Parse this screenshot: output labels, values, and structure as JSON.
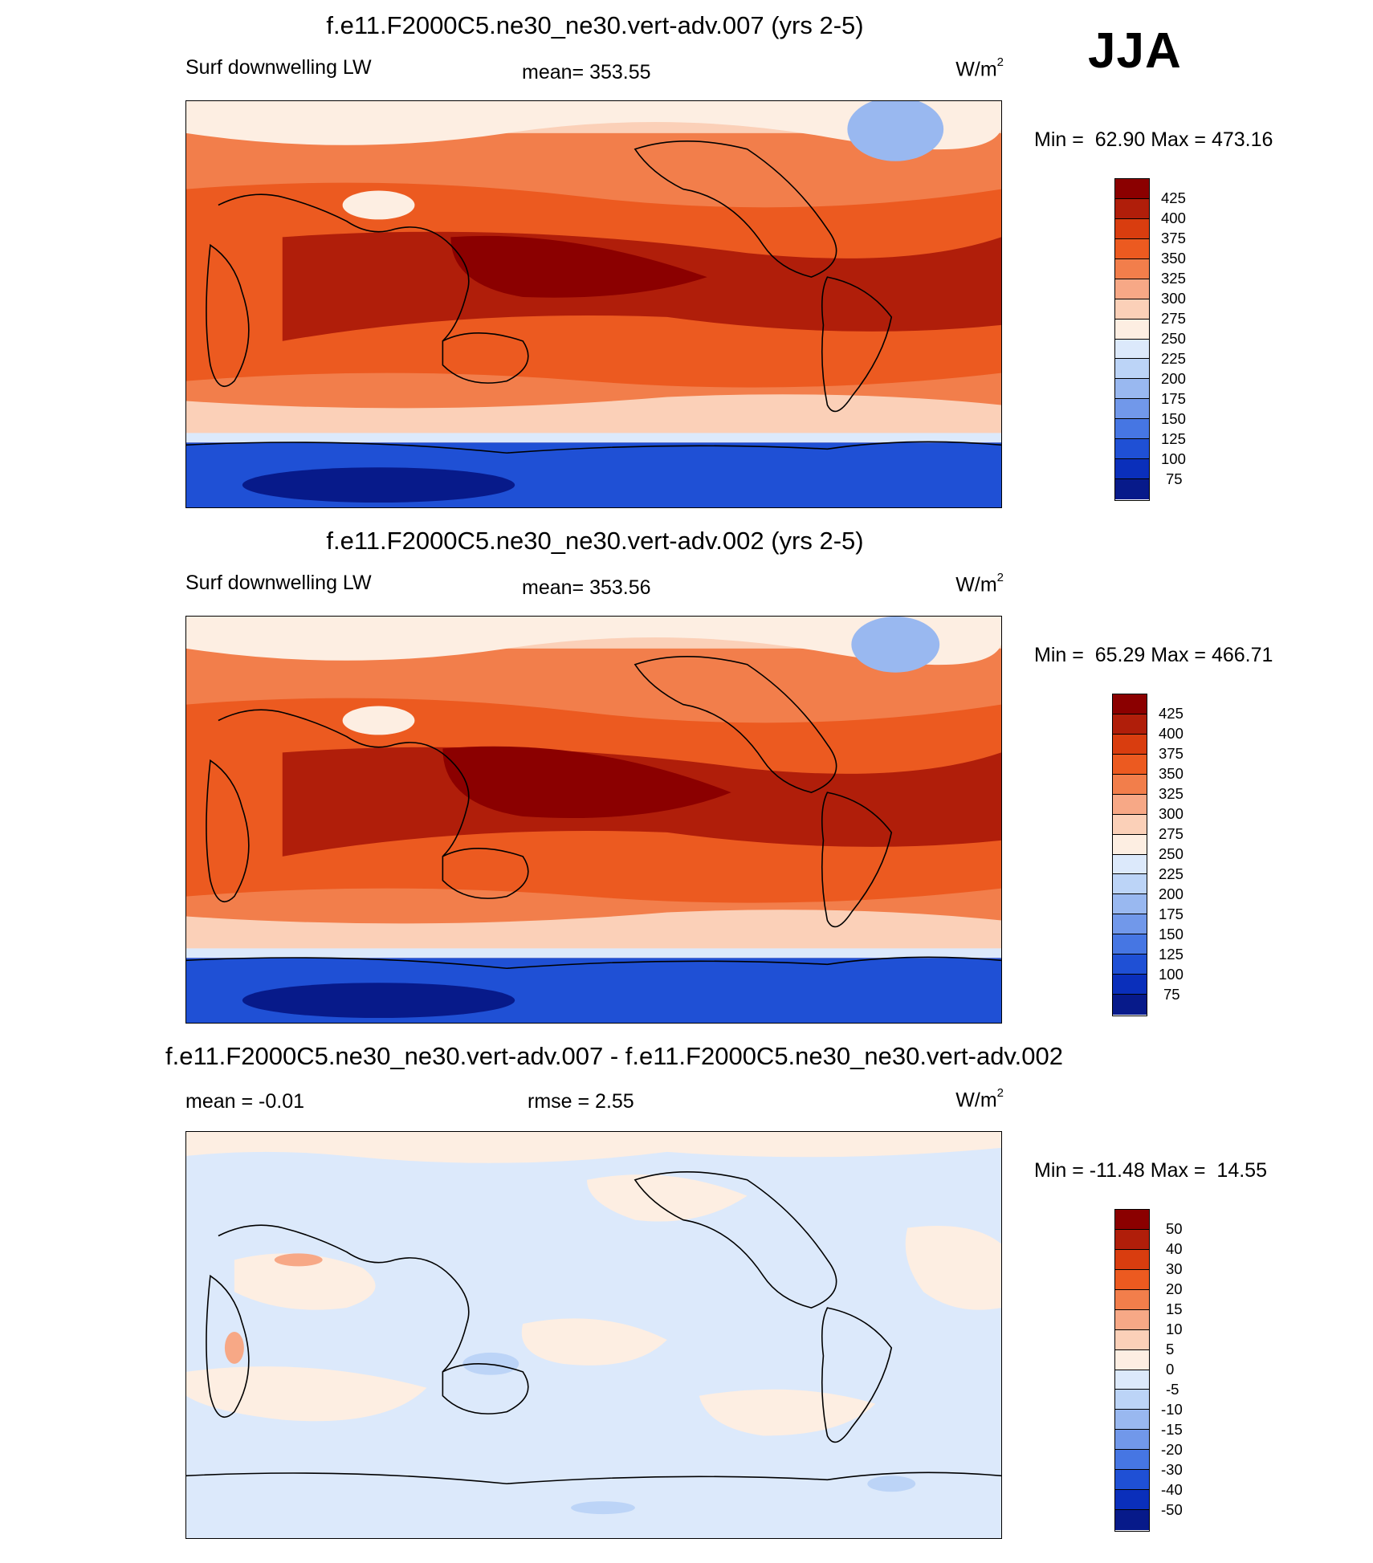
{
  "season_label": "JJA",
  "panels": [
    {
      "title": "f.e11.F2000C5.ne30_ne30.vert-adv.007 (yrs 2-5)",
      "left_label": "Surf downwelling LW",
      "center_label": "mean= 353.55",
      "units_base": "W/m",
      "units_exp": "2",
      "minmax": "Min =  62.90 Max = 473.16"
    },
    {
      "title": "f.e11.F2000C5.ne30_ne30.vert-adv.002 (yrs 2-5)",
      "left_label": "Surf downwelling LW",
      "center_label": "mean= 353.56",
      "units_base": "W/m",
      "units_exp": "2",
      "minmax": "Min =  65.29 Max = 466.71"
    },
    {
      "title": "f.e11.F2000C5.ne30_ne30.vert-adv.007 - f.e11.F2000C5.ne30_ne30.vert-adv.002",
      "left_label": "mean =  -0.01",
      "center_label": "rmse =   2.55",
      "units_base": "W/m",
      "units_exp": "2",
      "minmax": "Min = -11.48 Max =  14.55"
    }
  ],
  "chart_data": [
    {
      "type": "heatmap",
      "title": "f.e11.F2000C5.ne30_ne30.vert-adv.007 (yrs 2-5)",
      "variable": "Surf downwelling LW",
      "mean": 353.55,
      "min": 62.9,
      "max": 473.16,
      "units": "W/m2",
      "colorbar_levels": [
        425,
        400,
        375,
        350,
        325,
        300,
        275,
        250,
        225,
        200,
        175,
        150,
        125,
        100,
        75
      ],
      "colorbar_colors": [
        "#8b0000",
        "#b01e0a",
        "#d93d0f",
        "#ec5a20",
        "#f27e4b",
        "#f7a886",
        "#fbd0b8",
        "#fdeee2",
        "#dce9fb",
        "#bcd4f7",
        "#99b8f0",
        "#7198ea",
        "#4676e3",
        "#1f50d5",
        "#0a2fbb",
        "#071a8a"
      ],
      "projection": "cylindrical equidistant, centered on Pacific"
    },
    {
      "type": "heatmap",
      "title": "f.e11.F2000C5.ne30_ne30.vert-adv.002 (yrs 2-5)",
      "variable": "Surf downwelling LW",
      "mean": 353.56,
      "min": 65.29,
      "max": 466.71,
      "units": "W/m2",
      "colorbar_levels": [
        425,
        400,
        375,
        350,
        325,
        300,
        275,
        250,
        225,
        200,
        175,
        150,
        125,
        100,
        75
      ],
      "colorbar_colors": [
        "#8b0000",
        "#b01e0a",
        "#d93d0f",
        "#ec5a20",
        "#f27e4b",
        "#f7a886",
        "#fbd0b8",
        "#fdeee2",
        "#dce9fb",
        "#bcd4f7",
        "#99b8f0",
        "#7198ea",
        "#4676e3",
        "#1f50d5",
        "#0a2fbb",
        "#071a8a"
      ],
      "projection": "cylindrical equidistant, centered on Pacific"
    },
    {
      "type": "heatmap",
      "title": "f.e11.F2000C5.ne30_ne30.vert-adv.007 - f.e11.F2000C5.ne30_ne30.vert-adv.002",
      "mean": -0.01,
      "rmse": 2.55,
      "min": -11.48,
      "max": 14.55,
      "units": "W/m2",
      "colorbar_levels": [
        50,
        40,
        30,
        20,
        15,
        10,
        5,
        0,
        -5,
        -10,
        -15,
        -20,
        -30,
        -40,
        -50
      ],
      "colorbar_colors": [
        "#8b0000",
        "#b01e0a",
        "#d93d0f",
        "#ec5a20",
        "#f27e4b",
        "#f7a886",
        "#fbd0b8",
        "#fdeee2",
        "#dce9fb",
        "#bcd4f7",
        "#99b8f0",
        "#7198ea",
        "#4676e3",
        "#1f50d5",
        "#0a2fbb",
        "#071a8a"
      ],
      "projection": "cylindrical equidistant, centered on Pacific"
    }
  ]
}
